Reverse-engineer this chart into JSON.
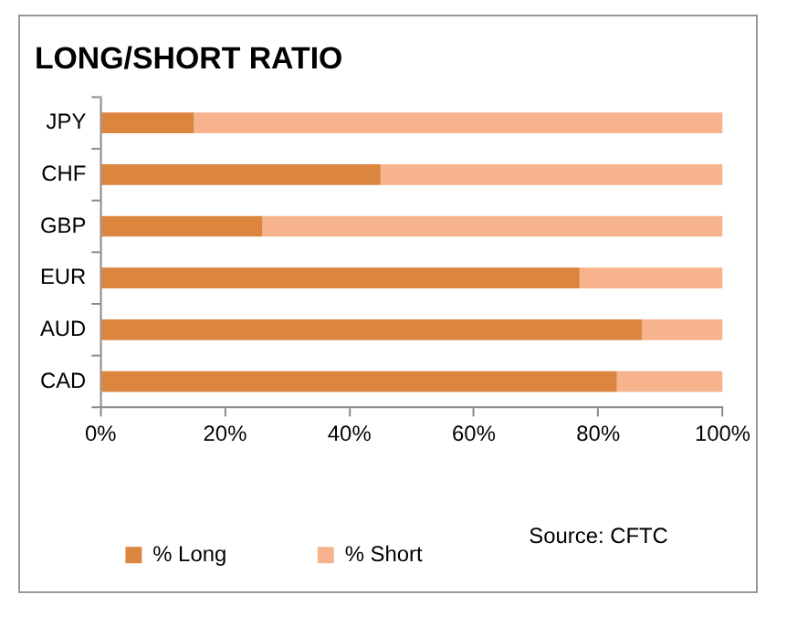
{
  "chart_data": {
    "type": "bar",
    "title": "LONG/SHORT RATIO",
    "orientation": "horizontal",
    "stacked": true,
    "categories": [
      "JPY",
      "CHF",
      "GBP",
      "EUR",
      "AUD",
      "CAD"
    ],
    "series": [
      {
        "name": "% Long",
        "color": "#dc853f",
        "values": [
          15,
          45,
          26,
          77,
          87,
          83
        ]
      },
      {
        "name": "% Short",
        "color": "#f7b38e",
        "values": [
          85,
          55,
          74,
          23,
          13,
          17
        ]
      }
    ],
    "xlim": [
      0,
      100
    ],
    "xticks": [
      {
        "value": 0,
        "label": "0%"
      },
      {
        "value": 20,
        "label": "20%"
      },
      {
        "value": 40,
        "label": "40%"
      },
      {
        "value": 60,
        "label": "60%"
      },
      {
        "value": 80,
        "label": "80%"
      },
      {
        "value": 100,
        "label": "100%"
      }
    ],
    "grid": false,
    "legend": "bottom",
    "annotations": [
      "Source: CFTC"
    ]
  }
}
